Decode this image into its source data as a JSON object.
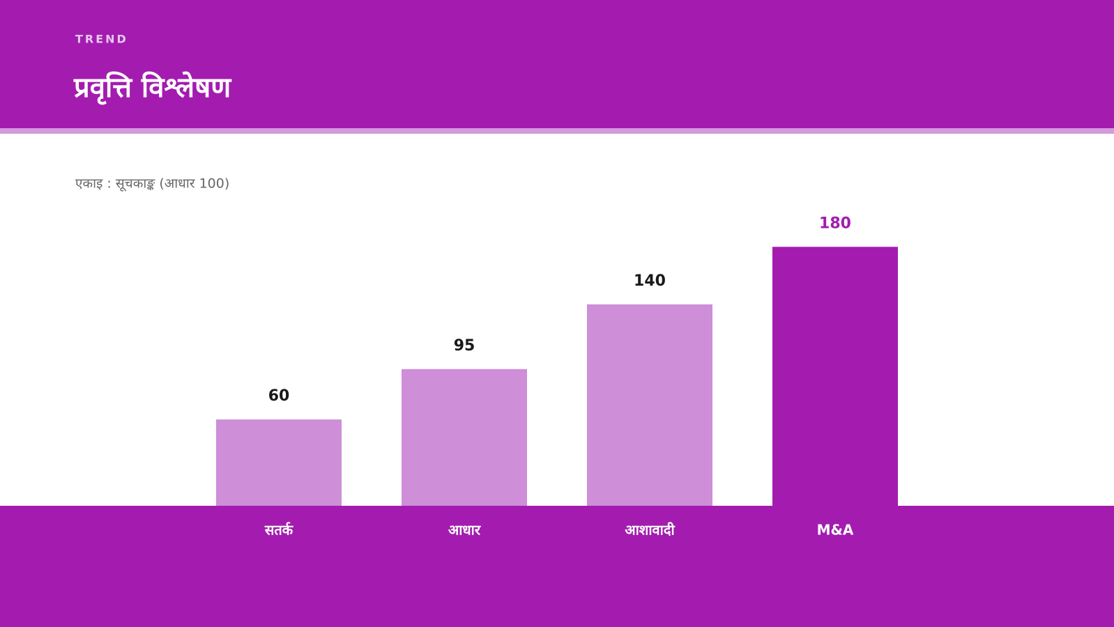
{
  "chart_data": {
    "type": "bar",
    "kicker": "TREND",
    "title": "प्रवृत्ति विश्लेषण",
    "subtitle": "एकाइ : सूचकाङ्क (आधार 100)",
    "categories": [
      "सतर्क",
      "आधार",
      "आशावादी",
      "M&A"
    ],
    "values": [
      60,
      95,
      140,
      180
    ],
    "colors": [
      "#ce8ed8",
      "#ce8ed8",
      "#ce8ed8",
      "#a31caf"
    ],
    "label_colors": [
      "#1a1a1a",
      "#1a1a1a",
      "#1a1a1a",
      "#a31caf"
    ],
    "ylim": [
      0,
      200
    ]
  }
}
